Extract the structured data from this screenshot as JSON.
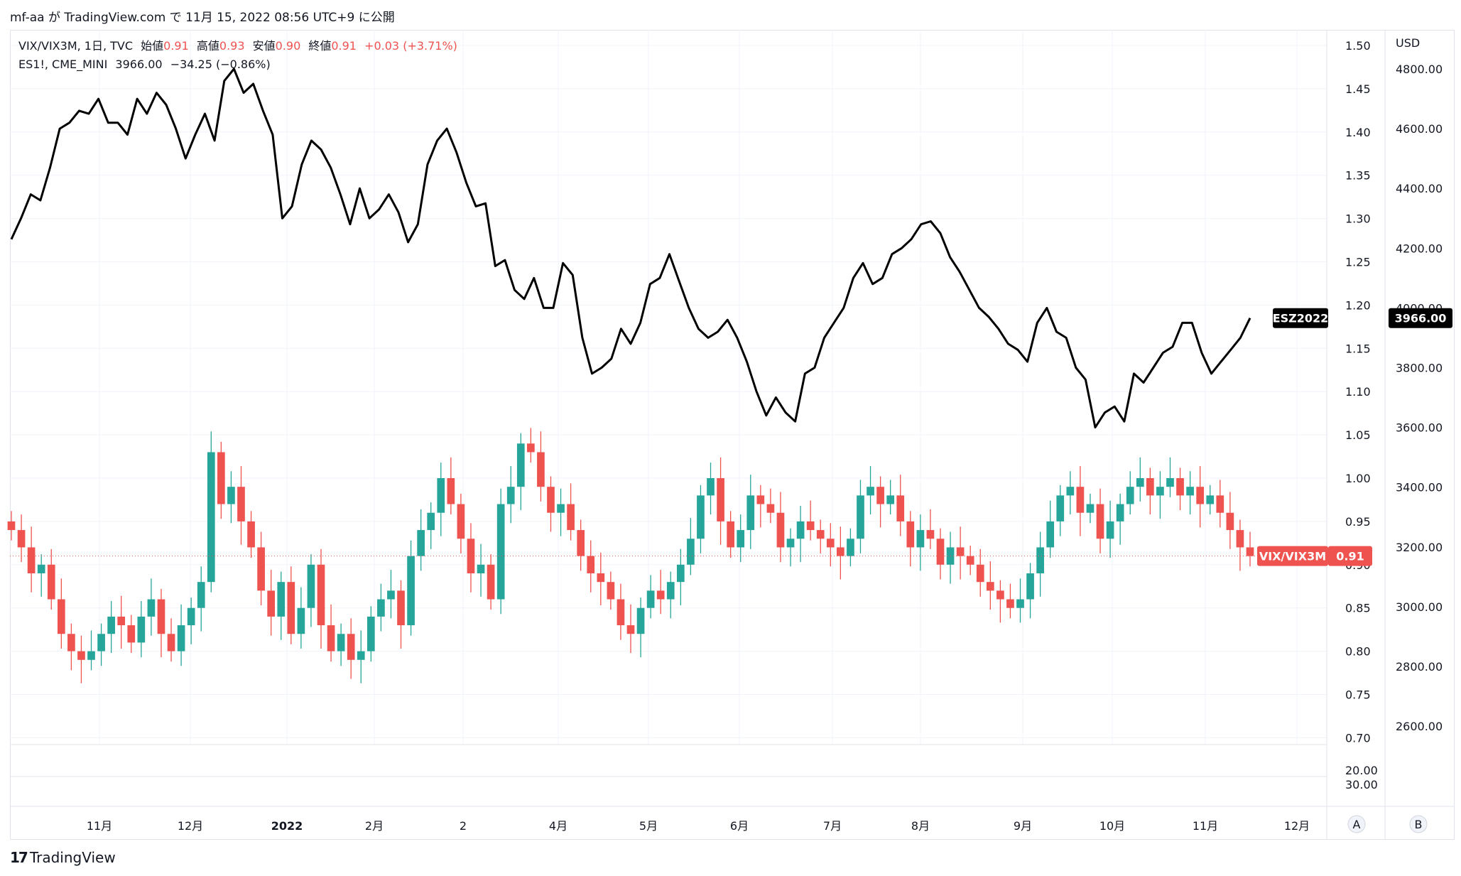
{
  "header": {
    "caption": "mf-aa が TradingView.com で 11月 15, 2022 08:56 UTC+9 に公開"
  },
  "legend": {
    "line1": {
      "symbol": "VIX/VIX3M, 1日, TVC",
      "open_label": "始値",
      "open_value": "0.91",
      "high_label": "高値",
      "high_value": "0.93",
      "low_label": "安値",
      "low_value": "0.90",
      "close_label": "終値",
      "close_value": "0.91",
      "change": "+0.03 (+3.71%)"
    },
    "line2": {
      "symbol": "ES1!, CME_MINI",
      "value": "3966.00",
      "change": "−34.25 (−0.86%)"
    }
  },
  "footer": {
    "brand": "TradingView",
    "logo_mark": "17"
  },
  "axis": {
    "currency": "USD",
    "ratio_ticks": [
      "1.50",
      "1.45",
      "1.40",
      "1.35",
      "1.30",
      "1.25",
      "1.20",
      "1.15",
      "1.10",
      "1.05",
      "1.00",
      "0.95",
      "0.90",
      "0.85",
      "0.80",
      "0.75",
      "0.70"
    ],
    "es_ticks": [
      "4800.00",
      "4600.00",
      "4400.00",
      "4200.00",
      "4000.00",
      "3800.00",
      "3600.00",
      "3400.00",
      "3200.00",
      "3000.00",
      "2800.00",
      "2600.00"
    ],
    "sub_ticks": [
      "20.00",
      "30.00"
    ],
    "x_ticks": [
      "11月",
      "12月",
      "2022",
      "2月",
      "2",
      "4月",
      "5月",
      "6月",
      "7月",
      "8月",
      "9月",
      "10月",
      "11月",
      "12月"
    ],
    "buttons": [
      "A",
      "B"
    ]
  },
  "tags": {
    "es_name": "ESZ2022",
    "es_price": "3966.00",
    "ratio_name": "VIX/VIX3M",
    "ratio_price": "0.91"
  },
  "colors": {
    "up": "#26a69a",
    "down": "#ef5350",
    "line": "#000000",
    "grid": "#f0f3fa"
  },
  "chart_data": {
    "type": "line",
    "series": [
      {
        "name": "ES1!, CME_MINI",
        "type": "line",
        "unit": "USD",
        "approx_values": [
          4230,
          4300,
          4380,
          4360,
          4470,
          4600,
          4620,
          4660,
          4650,
          4700,
          4620,
          4620,
          4580,
          4700,
          4650,
          4720,
          4680,
          4600,
          4500,
          4580,
          4650,
          4560,
          4760,
          4800,
          4720,
          4750,
          4660,
          4580,
          4300,
          4340,
          4480,
          4560,
          4530,
          4470,
          4380,
          4280,
          4400,
          4300,
          4330,
          4380,
          4320,
          4220,
          4280,
          4480,
          4560,
          4600,
          4520,
          4420,
          4340,
          4350,
          4140,
          4160,
          4060,
          4030,
          4100,
          4000,
          4000,
          4150,
          4110,
          3900,
          3780,
          3800,
          3830,
          3930,
          3880,
          3950,
          4080,
          4100,
          4180,
          4090,
          4000,
          3930,
          3900,
          3920,
          3960,
          3900,
          3820,
          3720,
          3640,
          3700,
          3650,
          3620,
          3780,
          3800,
          3900,
          3950,
          4000,
          4100,
          4150,
          4080,
          4100,
          4180,
          4200,
          4230,
          4280,
          4290,
          4250,
          4170,
          4120,
          4060,
          4000,
          3970,
          3930,
          3880,
          3860,
          3820,
          3950,
          4000,
          3920,
          3900,
          3800,
          3760,
          3600,
          3650,
          3670,
          3620,
          3780,
          3750,
          3800,
          3850,
          3870,
          3950,
          3950,
          3850,
          3780,
          3820,
          3860,
          3900,
          3966
        ]
      },
      {
        "name": "VIX/VIX3M",
        "type": "candlestick",
        "approx_closes": [
          0.94,
          0.92,
          0.89,
          0.9,
          0.86,
          0.82,
          0.8,
          0.79,
          0.8,
          0.82,
          0.84,
          0.83,
          0.81,
          0.84,
          0.86,
          0.82,
          0.8,
          0.83,
          0.85,
          0.88,
          1.03,
          0.97,
          0.99,
          0.95,
          0.92,
          0.87,
          0.84,
          0.88,
          0.82,
          0.85,
          0.9,
          0.83,
          0.8,
          0.82,
          0.79,
          0.8,
          0.84,
          0.86,
          0.87,
          0.83,
          0.91,
          0.94,
          0.96,
          1.0,
          0.97,
          0.93,
          0.89,
          0.9,
          0.86,
          0.97,
          0.99,
          1.04,
          1.03,
          0.99,
          0.96,
          0.97,
          0.94,
          0.91,
          0.89,
          0.88,
          0.86,
          0.83,
          0.82,
          0.85,
          0.87,
          0.86,
          0.88,
          0.9,
          0.93,
          0.98,
          1.0,
          0.95,
          0.92,
          0.94,
          0.98,
          0.97,
          0.96,
          0.92,
          0.93,
          0.95,
          0.94,
          0.93,
          0.92,
          0.91,
          0.93,
          0.98,
          0.99,
          0.97,
          0.98,
          0.95,
          0.92,
          0.94,
          0.93,
          0.9,
          0.92,
          0.91,
          0.9,
          0.88,
          0.87,
          0.86,
          0.85,
          0.86,
          0.89,
          0.92,
          0.95,
          0.98,
          0.99,
          0.96,
          0.97,
          0.93,
          0.95,
          0.97,
          0.99,
          1.0,
          0.98,
          0.99,
          1.0,
          0.98,
          0.99,
          0.97,
          0.98,
          0.96,
          0.94,
          0.92,
          0.91
        ]
      }
    ],
    "ratio_axis_range": [
      0.7,
      1.5
    ],
    "es_axis_range": [
      2600,
      4800
    ],
    "last_values": {
      "ESZ2022": 3966.0,
      "VIX/VIX3M": 0.91
    },
    "grid": true,
    "legend_position": "top-left"
  }
}
